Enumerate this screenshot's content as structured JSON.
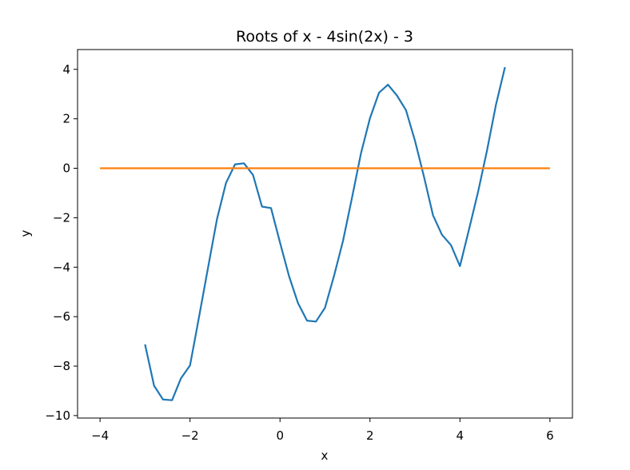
{
  "chart_data": {
    "type": "line",
    "title": "Roots of x - 4sin(2x) - 3",
    "xlabel": "x",
    "ylabel": "y",
    "xlim": [
      -4.5,
      6.5
    ],
    "ylim": [
      -10.1,
      4.8
    ],
    "xticks": [
      -4,
      -2,
      0,
      2,
      4,
      6
    ],
    "xtick_labels": [
      "−4",
      "−2",
      "0",
      "2",
      "4",
      "6"
    ],
    "yticks": [
      -10,
      -8,
      -6,
      -4,
      -2,
      0,
      2,
      4
    ],
    "ytick_labels": [
      "−10",
      "−8",
      "−6",
      "−4",
      "−2",
      "0",
      "2",
      "4"
    ],
    "grid": false,
    "series": [
      {
        "color": "#1f77b4",
        "x": [
          -3.0,
          -2.8,
          -2.6,
          -2.4,
          -2.2,
          -2.0,
          -1.8,
          -1.6,
          -1.4,
          -1.2,
          -1.0,
          -0.8,
          -0.6,
          -0.4,
          -0.2,
          0.0,
          0.2,
          0.4,
          0.6,
          0.8,
          1.0,
          1.2,
          1.4,
          1.6,
          1.8,
          2.0,
          2.2,
          2.4,
          2.6,
          2.8,
          3.0,
          3.2,
          3.4,
          3.6,
          3.8,
          4.0,
          4.2,
          4.4,
          4.6,
          4.8,
          5.0
        ],
        "y": [
          -7.12,
          -8.79,
          -9.35,
          -9.38,
          -8.49,
          -7.97,
          -6.02,
          -4.02,
          -2.06,
          -0.59,
          0.16,
          0.2,
          -0.27,
          -1.55,
          -1.61,
          -3.0,
          -4.36,
          -5.45,
          -6.16,
          -6.2,
          -5.64,
          -4.35,
          -2.94,
          -1.19,
          0.6,
          2.03,
          3.05,
          3.38,
          2.94,
          2.35,
          1.12,
          -0.34,
          -1.9,
          -2.69,
          -3.11,
          -3.96,
          -2.48,
          -0.98,
          0.71,
          2.56,
          4.09
        ]
      },
      {
        "color": "#ff7f0e",
        "x": [
          -4,
          6
        ],
        "y": [
          0,
          0
        ]
      }
    ]
  }
}
